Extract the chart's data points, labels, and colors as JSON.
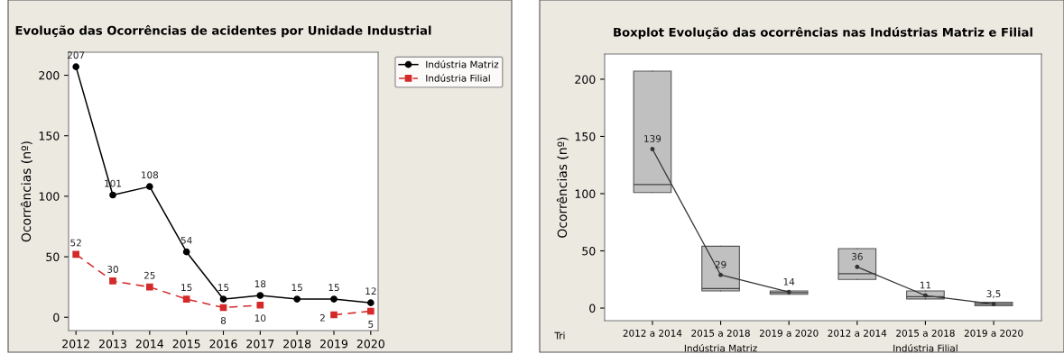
{
  "chart_data": [
    {
      "type": "line",
      "title": "Evolução das Ocorrências de acidentes por Unidade Industrial",
      "ylabel": "Ocorrências (nº)",
      "x": [
        2012,
        2013,
        2014,
        2015,
        2016,
        2017,
        2018,
        2019,
        2020
      ],
      "series": [
        {
          "name": "Indústria Matriz",
          "color": "#000000",
          "marker": "circle",
          "line_style": "solid",
          "values": [
            207,
            101,
            108,
            54,
            15,
            18,
            15,
            15,
            12
          ]
        },
        {
          "name": "Indústria Filial",
          "color": "#d42a2a",
          "marker": "square",
          "line_style": "dashed",
          "values": [
            52,
            30,
            25,
            15,
            8,
            10,
            null,
            2,
            5
          ]
        }
      ],
      "xlim": [
        2011.8,
        2020.2
      ],
      "xticks": [
        2012,
        2013,
        2014,
        2015,
        2016,
        2017,
        2018,
        2019,
        2020
      ],
      "ylim": [
        -11,
        219
      ],
      "yticks": [
        0,
        50,
        100,
        150,
        200
      ],
      "data_labels": true,
      "legend": "top right",
      "grid": false
    },
    {
      "type": "box",
      "title": "Boxplot Evolução das ocorrências nas Indústrias Matriz e Filial",
      "ylabel": "Ocorrências (nº)",
      "categories": [
        "2012 a 2014",
        "2015 a 2018",
        "2019 a 2020",
        "2012 a 2014",
        "2015 a 2018",
        "2019 a 2020"
      ],
      "series": [
        {
          "color": "#c0c0c0",
          "boxes": [
            {
              "low": 101,
              "q1": 101,
              "median": 108,
              "q3": 207,
              "high": 207,
              "mean": 139
            },
            {
              "low": 15,
              "q1": 15,
              "median": 17,
              "q3": 54,
              "high": 54,
              "mean": 29
            },
            {
              "low": 12,
              "q1": 12,
              "median": 13.5,
              "q3": 15,
              "high": 15,
              "mean": 14
            },
            null,
            null,
            null
          ],
          "value_labels": [
            "139",
            "29",
            "14",
            null,
            null,
            null
          ]
        },
        {
          "color": "#c0c0c0",
          "boxes": [
            null,
            null,
            null,
            {
              "low": 25,
              "q1": 25,
              "median": 30,
              "q3": 52,
              "high": 52,
              "mean": 36
            },
            {
              "low": 8,
              "q1": 8,
              "median": 10,
              "q3": 15,
              "high": 15,
              "mean": 11
            },
            {
              "low": 2,
              "q1": 2,
              "median": 3.5,
              "q3": 5,
              "high": 5,
              "mean": 3.5
            }
          ],
          "value_labels": [
            null,
            null,
            null,
            "36",
            "11",
            "3,5"
          ]
        }
      ],
      "ylim": [
        -11,
        222
      ],
      "yticks": [
        0,
        50,
        100,
        150,
        200
      ],
      "annotations": [
        "Tri",
        "Indústria Matriz",
        "Indústria Filial"
      ],
      "grid": false
    }
  ]
}
